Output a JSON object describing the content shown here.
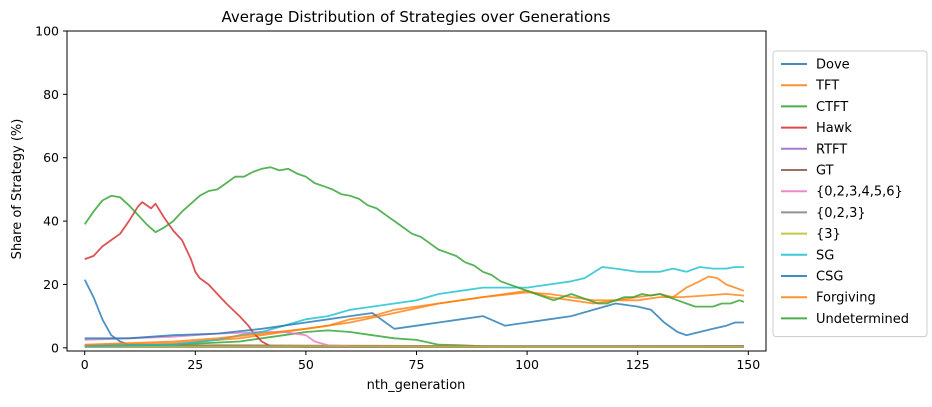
{
  "chart_data": {
    "type": "line",
    "title": "Average Distribution of Strategies over Generations",
    "xlabel": "nth_generation",
    "ylabel": "Share of Strategy (%)",
    "xlim": [
      -4,
      154
    ],
    "ylim": [
      -1,
      100
    ],
    "xticks": [
      0,
      25,
      50,
      75,
      100,
      125,
      150
    ],
    "yticks": [
      0,
      20,
      40,
      60,
      80,
      100
    ],
    "grid": false,
    "legend_position": "outside-right",
    "series": [
      {
        "name": "Dove",
        "color": "#1f77b4",
        "points": [
          [
            0,
            21.5
          ],
          [
            2,
            16
          ],
          [
            4,
            9
          ],
          [
            6,
            4
          ],
          [
            8,
            2
          ],
          [
            10,
            1
          ],
          [
            15,
            0.5
          ],
          [
            50,
            0.5
          ],
          [
            100,
            0.5
          ],
          [
            149,
            0.5
          ]
        ]
      },
      {
        "name": "TFT",
        "color": "#ff7f0e",
        "points": [
          [
            0,
            0.8
          ],
          [
            20,
            1.5
          ],
          [
            35,
            3
          ],
          [
            40,
            4
          ],
          [
            45,
            5
          ],
          [
            50,
            6
          ],
          [
            55,
            7
          ],
          [
            60,
            9
          ],
          [
            65,
            10
          ],
          [
            70,
            12
          ],
          [
            75,
            13
          ],
          [
            80,
            14
          ],
          [
            85,
            15
          ],
          [
            90,
            16
          ],
          [
            95,
            17
          ],
          [
            100,
            18
          ],
          [
            105,
            16
          ],
          [
            110,
            15
          ],
          [
            115,
            14
          ],
          [
            120,
            15
          ],
          [
            125,
            16
          ],
          [
            130,
            17
          ],
          [
            133,
            16
          ],
          [
            136,
            19
          ],
          [
            139,
            21
          ],
          [
            141,
            22.5
          ],
          [
            143,
            22
          ],
          [
            145,
            20
          ],
          [
            147,
            19
          ],
          [
            149,
            18
          ]
        ]
      },
      {
        "name": "CTFT",
        "color": "#2ca02c",
        "points": [
          [
            0,
            0.5
          ],
          [
            10,
            0.8
          ],
          [
            20,
            1
          ],
          [
            35,
            2
          ],
          [
            45,
            4
          ],
          [
            50,
            5
          ],
          [
            55,
            5.5
          ],
          [
            60,
            5
          ],
          [
            65,
            4
          ],
          [
            70,
            3
          ],
          [
            75,
            2.5
          ],
          [
            80,
            1
          ],
          [
            85,
            0.8
          ],
          [
            90,
            0.5
          ],
          [
            100,
            0.4
          ],
          [
            149,
            0.4
          ]
        ]
      },
      {
        "name": "Hawk",
        "color": "#d62728",
        "points": [
          [
            0,
            28
          ],
          [
            2,
            29
          ],
          [
            4,
            32
          ],
          [
            6,
            34
          ],
          [
            8,
            36
          ],
          [
            10,
            40
          ],
          [
            12,
            44.5
          ],
          [
            13,
            46
          ],
          [
            15,
            44
          ],
          [
            16,
            45.5
          ],
          [
            18,
            41
          ],
          [
            20,
            37
          ],
          [
            22,
            34
          ],
          [
            24,
            28
          ],
          [
            25,
            24
          ],
          [
            26,
            22
          ],
          [
            28,
            20
          ],
          [
            30,
            17
          ],
          [
            32,
            14
          ],
          [
            35,
            10
          ],
          [
            37,
            7
          ],
          [
            38,
            5
          ],
          [
            40,
            2
          ],
          [
            42,
            0.5
          ],
          [
            50,
            0.3
          ],
          [
            149,
            0.3
          ]
        ]
      },
      {
        "name": "RTFT",
        "color": "#9467bd",
        "points": [
          [
            0,
            0.3
          ],
          [
            50,
            0.3
          ],
          [
            100,
            0.3
          ],
          [
            149,
            0.3
          ]
        ]
      },
      {
        "name": "GT",
        "color": "#8c564b",
        "points": [
          [
            0,
            0.5
          ],
          [
            30,
            0.8
          ],
          [
            50,
            0.7
          ],
          [
            100,
            0.5
          ],
          [
            149,
            0.5
          ]
        ]
      },
      {
        "name": "{0,2,3,4,5,6}",
        "color": "#e377c2",
        "points": [
          [
            0,
            2.5
          ],
          [
            10,
            3
          ],
          [
            20,
            3.5
          ],
          [
            30,
            4.5
          ],
          [
            40,
            5
          ],
          [
            45,
            5
          ],
          [
            50,
            4
          ],
          [
            52,
            2
          ],
          [
            55,
            0.8
          ],
          [
            60,
            0.5
          ],
          [
            149,
            0.3
          ]
        ]
      },
      {
        "name": "{0,2,3}",
        "color": "#7f7f7f",
        "points": [
          [
            0,
            0.3
          ],
          [
            149,
            0.3
          ]
        ]
      },
      {
        "name": "{3}",
        "color": "#bcbd22",
        "points": [
          [
            0,
            0.4
          ],
          [
            50,
            0.5
          ],
          [
            100,
            0.4
          ],
          [
            149,
            0.4
          ]
        ]
      },
      {
        "name": "SG",
        "color": "#17becf",
        "points": [
          [
            0,
            0.5
          ],
          [
            20,
            1
          ],
          [
            30,
            2.5
          ],
          [
            35,
            4
          ],
          [
            40,
            5
          ],
          [
            45,
            7
          ],
          [
            50,
            9
          ],
          [
            55,
            10
          ],
          [
            60,
            12
          ],
          [
            65,
            13
          ],
          [
            70,
            14
          ],
          [
            75,
            15
          ],
          [
            80,
            17
          ],
          [
            85,
            18
          ],
          [
            90,
            19
          ],
          [
            95,
            19
          ],
          [
            100,
            19
          ],
          [
            105,
            20
          ],
          [
            110,
            21
          ],
          [
            113,
            22
          ],
          [
            117,
            25.5
          ],
          [
            120,
            25
          ],
          [
            125,
            24
          ],
          [
            130,
            24
          ],
          [
            133,
            25
          ],
          [
            136,
            24
          ],
          [
            139,
            25.5
          ],
          [
            142,
            25
          ],
          [
            145,
            25
          ],
          [
            147,
            25.5
          ],
          [
            149,
            25.5
          ]
        ]
      },
      {
        "name": "CSG",
        "color": "#1f77b4",
        "points": [
          [
            0,
            3
          ],
          [
            10,
            3
          ],
          [
            20,
            4
          ],
          [
            30,
            4.5
          ],
          [
            40,
            6
          ],
          [
            50,
            8
          ],
          [
            55,
            9
          ],
          [
            60,
            10
          ],
          [
            65,
            11
          ],
          [
            70,
            6
          ],
          [
            75,
            7
          ],
          [
            80,
            8
          ],
          [
            85,
            9
          ],
          [
            90,
            10
          ],
          [
            95,
            7
          ],
          [
            100,
            8
          ],
          [
            105,
            9
          ],
          [
            110,
            10
          ],
          [
            115,
            12
          ],
          [
            120,
            14
          ],
          [
            125,
            13
          ],
          [
            128,
            12
          ],
          [
            131,
            8
          ],
          [
            134,
            5
          ],
          [
            136,
            4
          ],
          [
            139,
            5
          ],
          [
            142,
            6
          ],
          [
            145,
            7
          ],
          [
            147,
            8
          ],
          [
            149,
            8
          ]
        ]
      },
      {
        "name": "Forgiving",
        "color": "#ff7f0e",
        "points": [
          [
            0,
            1
          ],
          [
            10,
            1.5
          ],
          [
            20,
            2
          ],
          [
            30,
            3
          ],
          [
            40,
            4.5
          ],
          [
            50,
            6
          ],
          [
            60,
            8
          ],
          [
            70,
            11
          ],
          [
            80,
            14
          ],
          [
            90,
            16
          ],
          [
            100,
            17.5
          ],
          [
            105,
            17
          ],
          [
            110,
            16
          ],
          [
            115,
            15
          ],
          [
            120,
            15
          ],
          [
            125,
            15
          ],
          [
            130,
            16
          ],
          [
            135,
            16
          ],
          [
            140,
            16.5
          ],
          [
            145,
            17
          ],
          [
            149,
            16.5
          ]
        ]
      },
      {
        "name": "Undetermined",
        "color": "#2ca02c",
        "points": [
          [
            0,
            39
          ],
          [
            2,
            43
          ],
          [
            4,
            46.5
          ],
          [
            6,
            48
          ],
          [
            8,
            47.5
          ],
          [
            10,
            45
          ],
          [
            12,
            42
          ],
          [
            14,
            39
          ],
          [
            16,
            36.5
          ],
          [
            18,
            38
          ],
          [
            20,
            40
          ],
          [
            22,
            43
          ],
          [
            24,
            45.5
          ],
          [
            26,
            48
          ],
          [
            28,
            49.5
          ],
          [
            30,
            50
          ],
          [
            32,
            52
          ],
          [
            34,
            54
          ],
          [
            36,
            54
          ],
          [
            38,
            55.5
          ],
          [
            40,
            56.5
          ],
          [
            42,
            57
          ],
          [
            44,
            56
          ],
          [
            46,
            56.5
          ],
          [
            48,
            55
          ],
          [
            50,
            54
          ],
          [
            52,
            52
          ],
          [
            54,
            51
          ],
          [
            56,
            50
          ],
          [
            58,
            48.5
          ],
          [
            60,
            48
          ],
          [
            62,
            47
          ],
          [
            64,
            45
          ],
          [
            66,
            44
          ],
          [
            68,
            42
          ],
          [
            70,
            40
          ],
          [
            72,
            38
          ],
          [
            74,
            36
          ],
          [
            76,
            35
          ],
          [
            78,
            33
          ],
          [
            80,
            31
          ],
          [
            82,
            30
          ],
          [
            84,
            29
          ],
          [
            86,
            27
          ],
          [
            88,
            26
          ],
          [
            90,
            24
          ],
          [
            92,
            23
          ],
          [
            94,
            21
          ],
          [
            96,
            20
          ],
          [
            98,
            19
          ],
          [
            100,
            18
          ],
          [
            102,
            17
          ],
          [
            104,
            16
          ],
          [
            106,
            15
          ],
          [
            108,
            16
          ],
          [
            110,
            17
          ],
          [
            112,
            16
          ],
          [
            114,
            15
          ],
          [
            116,
            14
          ],
          [
            118,
            14
          ],
          [
            120,
            15
          ],
          [
            122,
            16
          ],
          [
            124,
            16
          ],
          [
            126,
            17
          ],
          [
            128,
            16.5
          ],
          [
            130,
            17
          ],
          [
            132,
            16
          ],
          [
            134,
            15
          ],
          [
            136,
            14
          ],
          [
            138,
            13
          ],
          [
            140,
            13
          ],
          [
            142,
            13
          ],
          [
            144,
            14
          ],
          [
            146,
            14
          ],
          [
            148,
            15
          ],
          [
            149,
            14.5
          ]
        ]
      }
    ]
  }
}
